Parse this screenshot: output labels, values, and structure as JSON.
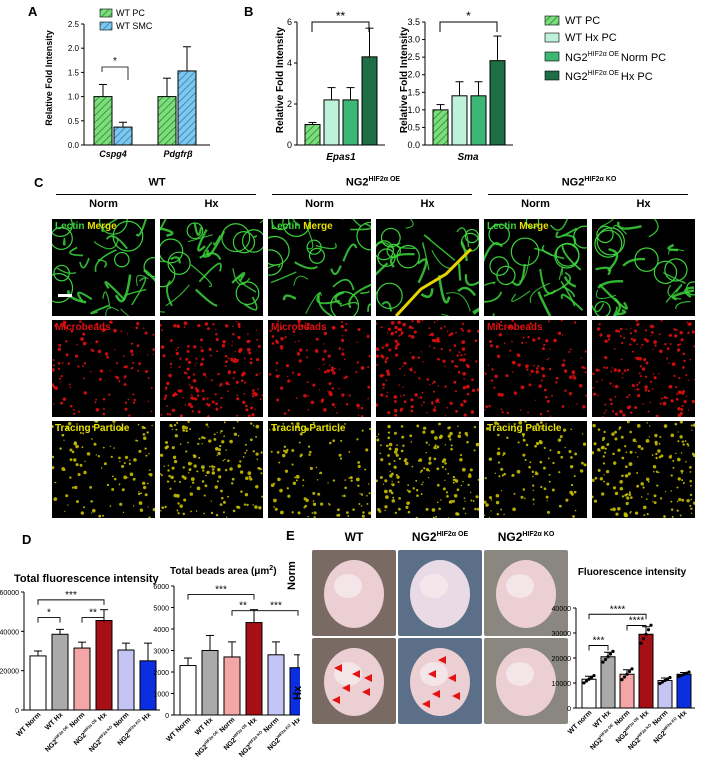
{
  "panels": {
    "A": "A",
    "B": "B",
    "C": "C",
    "D": "D",
    "E": "E"
  },
  "panelA": {
    "ylabel": "Relative Fold Intensity",
    "legend": [
      "WT PC",
      "WT SMC"
    ],
    "yticks": [
      "0.0",
      "0.5",
      "1.0",
      "1.5",
      "2.0",
      "2.5"
    ],
    "categories": [
      "Cspg4",
      "Pdgfrβ"
    ],
    "sig": [
      "*"
    ]
  },
  "panelB": {
    "ylabel": "Relative Fold Intensity",
    "left": {
      "xlabel": "Epas1",
      "yticks": [
        "0",
        "2",
        "4",
        "6"
      ],
      "sig": "**"
    },
    "right": {
      "xlabel": "Sma",
      "yticks": [
        "0.0",
        "0.5",
        "1.0",
        "1.5",
        "2.0",
        "2.5",
        "3.0",
        "3.5"
      ],
      "sig": "*"
    },
    "legend": [
      "WT PC",
      "WT Hx PC",
      "NG2",
      "Norm PC",
      "NG2",
      "Hx PC"
    ],
    "legend_sup": "HIF2α OE"
  },
  "panelC": {
    "groups": [
      {
        "name": "WT",
        "sup": ""
      },
      {
        "name": "NG2",
        "sup": "HIF2α OE"
      },
      {
        "name": "NG2",
        "sup": "HIF2α KO"
      }
    ],
    "norm": "Norm",
    "hx": "Hx",
    "rows": [
      {
        "lbl1": "Lectin",
        "lbl2": "Merge"
      },
      {
        "lbl1": "Microbeads",
        "lbl2": ""
      },
      {
        "lbl1": "Tracing Particle",
        "lbl2": ""
      }
    ]
  },
  "panelD": {
    "left": {
      "title": "Total fluorescence intensity",
      "yticks": [
        "0",
        "20000",
        "40000",
        "60000"
      ],
      "sig": [
        "***",
        "*",
        "**"
      ]
    },
    "right": {
      "title": "Total beads area (μm",
      "title_sup": "2",
      "title_end": ")",
      "yticks": [
        "0",
        "1000",
        "2000",
        "3000",
        "4000",
        "5000",
        "6000"
      ],
      "sig": [
        "***",
        "**",
        "***"
      ]
    },
    "xlabels": [
      "WT Norm",
      "WT Hx",
      "NG2",
      "Norm",
      "NG2",
      "Hx",
      "NG2",
      "Norm",
      "NG2",
      "Hx"
    ],
    "sup_oe": "HIF2α OE",
    "sup_ko": "HIF2α KO"
  },
  "panelE": {
    "cols": [
      {
        "name": "WT",
        "sup": ""
      },
      {
        "name": "NG2",
        "sup": "HIF2α OE"
      },
      {
        "name": "NG2",
        "sup": "HIF2α KO"
      }
    ],
    "rows": [
      "Norm",
      "Hx"
    ],
    "chart_title": "Fluorescence intensity",
    "yticks": [
      "0",
      "10000",
      "20000",
      "30000",
      "40000"
    ],
    "sig": [
      "****",
      "***",
      "****"
    ],
    "xlabels": [
      "WT norm",
      "WT Hx",
      "NG2",
      "Norm",
      "NG2",
      "Hx",
      "NG2",
      "Norm",
      "NG2",
      "Hx"
    ],
    "sup_oe": "HIF2α OE",
    "sup_ko": "HIF2α KO"
  },
  "chart_data": [
    {
      "type": "bar",
      "panel": "A",
      "categories": [
        "Cspg4",
        "Pdgfrβ"
      ],
      "series": [
        {
          "name": "WT PC",
          "values": [
            1.0,
            1.0
          ],
          "err": [
            0.25,
            0.38
          ]
        },
        {
          "name": "WT SMC",
          "values": [
            0.37,
            1.53
          ],
          "err": [
            0.1,
            0.5
          ]
        }
      ],
      "ylim": [
        0,
        2.5
      ],
      "colors": [
        "#7ddc7d",
        "#7ec8ef"
      ]
    },
    {
      "type": "bar",
      "panel": "B-left",
      "categories": [
        "WT PC",
        "WT Hx PC",
        "Norm PC",
        "Hx PC"
      ],
      "values": [
        1.0,
        2.2,
        2.2,
        4.3
      ],
      "err": [
        0.1,
        0.6,
        0.6,
        1.4
      ],
      "ylim": [
        0,
        6
      ],
      "colors": [
        "#7ddc7d",
        "#bdf1da",
        "#3cb874",
        "#1e6e45"
      ]
    },
    {
      "type": "bar",
      "panel": "B-right",
      "categories": [
        "WT PC",
        "WT Hx PC",
        "Norm PC",
        "Hx PC"
      ],
      "values": [
        1.0,
        1.4,
        1.4,
        2.4
      ],
      "err": [
        0.15,
        0.4,
        0.4,
        0.7
      ],
      "ylim": [
        0,
        3.5
      ],
      "colors": [
        "#7ddc7d",
        "#bdf1da",
        "#3cb874",
        "#1e6e45"
      ]
    },
    {
      "type": "bar",
      "panel": "D-left",
      "values": [
        27500,
        38500,
        31500,
        45500,
        30500,
        25000
      ],
      "err": [
        2500,
        2500,
        3000,
        5500,
        3500,
        9000
      ],
      "ylim": [
        0,
        60000
      ],
      "colors": [
        "#ffffff",
        "#aaaaaa",
        "#f4a6a6",
        "#a50f15",
        "#c5c5f5",
        "#0a2ee0"
      ]
    },
    {
      "type": "bar",
      "panel": "D-right",
      "values": [
        2300,
        3000,
        2700,
        4300,
        2800,
        2200
      ],
      "err": [
        350,
        700,
        700,
        600,
        600,
        600
      ],
      "ylim": [
        0,
        6000
      ],
      "colors": [
        "#ffffff",
        "#aaaaaa",
        "#f4a6a6",
        "#a50f15",
        "#c5c5f5",
        "#0a2ee0"
      ]
    },
    {
      "type": "bar",
      "panel": "E-chart",
      "values": [
        11500,
        20500,
        13500,
        29500,
        11000,
        13500
      ],
      "err": [
        1200,
        1800,
        1800,
        3000,
        1000,
        700
      ],
      "ylim": [
        0,
        40000
      ],
      "colors": [
        "#ffffff",
        "#aaaaaa",
        "#f4a6a6",
        "#a50f15",
        "#c5c5f5",
        "#0a2ee0"
      ]
    }
  ]
}
